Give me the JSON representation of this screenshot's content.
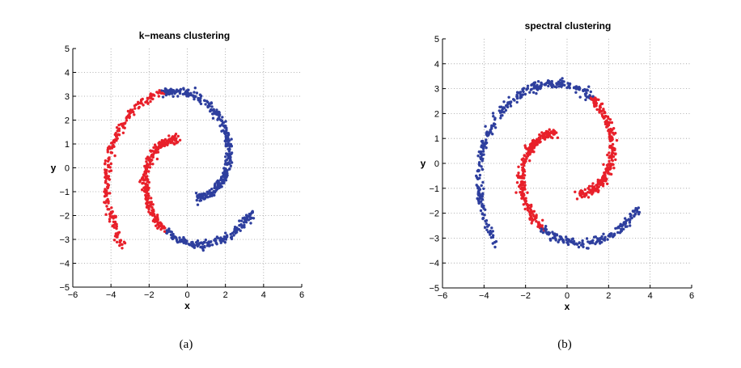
{
  "figure": {
    "captions": [
      "(a)",
      "(b)"
    ]
  },
  "colors": {
    "red": "#e8202a",
    "blue": "#2e3f9e"
  },
  "chart_data": [
    {
      "type": "scatter",
      "title": "k−means clustering",
      "xlabel": "x",
      "ylabel": "y",
      "xlim": [
        -6,
        6
      ],
      "ylim": [
        -5,
        5
      ],
      "xticks": [
        "−6",
        "−4",
        "−2",
        "0",
        "2",
        "4",
        "6"
      ],
      "yticks": [
        "−5",
        "−4",
        "−3",
        "−2",
        "−1",
        "0",
        "1",
        "2",
        "3",
        "4",
        "5"
      ],
      "grid": true,
      "point_count": 1000,
      "clusters": [
        {
          "color": "#e8202a",
          "arms": [
            {
              "arm": "outer",
              "t_range": [
                2.0,
                4.3
              ]
            },
            {
              "arm": "inner",
              "t_range": [
                5.1,
                7.05
              ]
            }
          ]
        },
        {
          "color": "#2e3f9e",
          "arms": [
            {
              "arm": "outer",
              "t_range": [
                4.3,
                5.8
              ]
            },
            {
              "arm": "inner",
              "t_range": [
                2.0,
                5.1
              ]
            }
          ]
        }
      ]
    },
    {
      "type": "scatter",
      "title": "spectral clustering",
      "xlabel": "x",
      "ylabel": "y",
      "xlim": [
        -6,
        6
      ],
      "ylim": [
        -5,
        5
      ],
      "xticks": [
        "−6",
        "−4",
        "−2",
        "0",
        "2",
        "4",
        "6"
      ],
      "yticks": [
        "−5",
        "−4",
        "−3",
        "−2",
        "−1",
        "0",
        "1",
        "2",
        "3",
        "4",
        "5"
      ],
      "grid": true,
      "point_count": 1000,
      "clusters": [
        {
          "color": "#e8202a",
          "arms": [
            {
              "arm": "outer",
              "t_range": [
                2.0,
                4.3
              ]
            },
            {
              "arm": "inner",
              "t_range": [
                2.0,
                4.3
              ]
            }
          ]
        },
        {
          "color": "#2e3f9e",
          "arms": [
            {
              "arm": "outer",
              "t_range": [
                4.3,
                5.8
              ]
            },
            {
              "arm": "inner",
              "t_range": [
                4.3,
                7.05
              ]
            }
          ]
        }
      ]
    }
  ]
}
